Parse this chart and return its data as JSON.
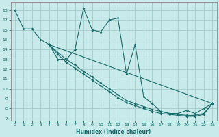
{
  "xlabel": "Humidex (Indice chaleur)",
  "background_color": "#c9eaea",
  "grid_color": "#aacfcf",
  "line_color": "#1a6b6b",
  "xlim": [
    -0.5,
    23.5
  ],
  "ylim": [
    6.8,
    18.8
  ],
  "yticks": [
    7,
    8,
    9,
    10,
    11,
    12,
    13,
    14,
    15,
    16,
    17,
    18
  ],
  "xticks": [
    0,
    1,
    2,
    3,
    4,
    5,
    6,
    7,
    8,
    9,
    10,
    11,
    12,
    13,
    14,
    15,
    16,
    17,
    18,
    19,
    20,
    21,
    22,
    23
  ],
  "series0_x": [
    0,
    1,
    2,
    3,
    4,
    5,
    6,
    7,
    8,
    9,
    10,
    11,
    12,
    13,
    14,
    15,
    16,
    17,
    18,
    19,
    20,
    21,
    22,
    23
  ],
  "series0_y": [
    18,
    16.1,
    16.1,
    15,
    14.5,
    13,
    13,
    14,
    18.2,
    16,
    15.8,
    17,
    17.2,
    11.5,
    14.5,
    9.2,
    8.5,
    7.7,
    7.5,
    7.5,
    7.8,
    7.5,
    8.0,
    8.5
  ],
  "series1_x": [
    4,
    5,
    6,
    7,
    8,
    9,
    10,
    11,
    12,
    13,
    14,
    15,
    16,
    17,
    18,
    19,
    20,
    21,
    22,
    23
  ],
  "series1_y": [
    14.5,
    13.7,
    13.0,
    12.4,
    11.8,
    11.2,
    10.6,
    10.0,
    9.4,
    8.8,
    8.5,
    8.2,
    7.9,
    7.7,
    7.5,
    7.4,
    7.3,
    7.3,
    7.5,
    8.5
  ],
  "series2_x": [
    4,
    5,
    6,
    7,
    8,
    9,
    10,
    11,
    12,
    13,
    14,
    15,
    16,
    17,
    18,
    19,
    20,
    21,
    22,
    23
  ],
  "series2_y": [
    14.5,
    13.5,
    12.7,
    12.1,
    11.5,
    10.9,
    10.3,
    9.7,
    9.1,
    8.6,
    8.3,
    8.0,
    7.7,
    7.5,
    7.4,
    7.3,
    7.2,
    7.2,
    7.4,
    8.5
  ],
  "series3_x": [
    4,
    23
  ],
  "series3_y": [
    14.5,
    8.5
  ]
}
